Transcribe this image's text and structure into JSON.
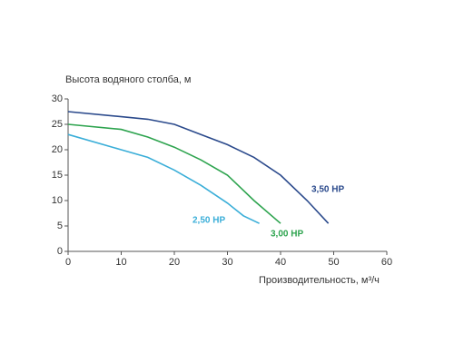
{
  "chart_data": {
    "type": "line",
    "y_title": "Высота водяного столба, м",
    "x_title": "Производительность, м³/ч",
    "xlim": [
      0,
      60
    ],
    "xticks": [
      0,
      10,
      20,
      30,
      40,
      50,
      60
    ],
    "ylim": [
      0,
      30
    ],
    "yticks": [
      0,
      5,
      10,
      15,
      20,
      25,
      30
    ],
    "series": [
      {
        "name": "3,50 HP",
        "color": "#2b4a8c",
        "x": [
          0,
          10,
          15,
          20,
          25,
          30,
          35,
          40,
          45,
          49
        ],
        "values": [
          27.5,
          26.5,
          26,
          25,
          23,
          21,
          18.5,
          15,
          10,
          5.5
        ]
      },
      {
        "name": "3,00 HP",
        "color": "#2ea44f",
        "x": [
          0,
          10,
          15,
          20,
          25,
          30,
          32,
          35,
          40
        ],
        "values": [
          25,
          24,
          22.5,
          20.5,
          18,
          15,
          13,
          10,
          5.5
        ]
      },
      {
        "name": "2,50 HP",
        "color": "#3aaed8",
        "x": [
          0,
          10,
          15,
          20,
          25,
          30,
          33,
          36
        ],
        "values": [
          23,
          20,
          18.5,
          16,
          13,
          9.5,
          7,
          5.5
        ]
      }
    ]
  }
}
